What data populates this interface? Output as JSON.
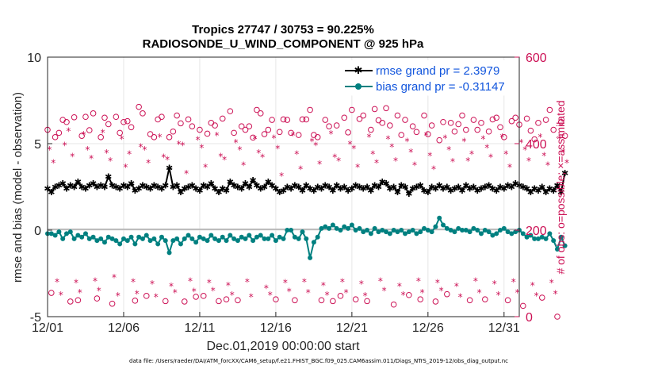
{
  "chart_data": {
    "type": "line",
    "title": "Tropics 27747 / 30753 = 90.225%",
    "subtitle": "RADIOSONDE_U_WIND_COMPONENT @ 925 hPa",
    "xlabel": "Dec.01,2019 00:00:00 start",
    "ylabel": "rmse and bias (model - observation)",
    "ylabel_right": "# of obs: o=possible; ×=assimilated",
    "x_range": [
      0,
      31
    ],
    "ylim": [
      -5,
      10
    ],
    "ylim_right": [
      0,
      600
    ],
    "x_ticks": [
      {
        "value": 0,
        "label": "12/01"
      },
      {
        "value": 5,
        "label": "12/06"
      },
      {
        "value": 10,
        "label": "12/11"
      },
      {
        "value": 15,
        "label": "12/16"
      },
      {
        "value": 20,
        "label": "12/21"
      },
      {
        "value": 25,
        "label": "12/26"
      },
      {
        "value": 30,
        "label": "12/31"
      }
    ],
    "y_ticks": [
      -5,
      0,
      5,
      10
    ],
    "y_ticks_right": [
      0,
      200,
      400,
      600
    ],
    "legend_position": "top-right",
    "series": [
      {
        "name": "rmse grand pr = 2.3979",
        "axis": "left",
        "color": "#000000",
        "marker": "star",
        "x_start": 0,
        "x_step": 0.25,
        "values": [
          2.4,
          2.2,
          2.5,
          2.6,
          2.7,
          2.4,
          2.6,
          2.5,
          2.8,
          2.5,
          2.4,
          2.6,
          2.7,
          2.5,
          2.6,
          2.5,
          3.1,
          2.6,
          2.5,
          2.4,
          2.6,
          2.5,
          2.7,
          2.3,
          2.4,
          2.6,
          2.5,
          2.4,
          2.6,
          2.5,
          2.4,
          2.6,
          3.6,
          2.5,
          2.6,
          2.2,
          2.4,
          2.5,
          2.6,
          2.4,
          2.3,
          2.6,
          2.5,
          2.7,
          2.4,
          2.2,
          2.4,
          2.3,
          2.8,
          2.6,
          2.5,
          2.4,
          2.7,
          2.5,
          2.9,
          2.6,
          2.4,
          2.5,
          2.8,
          2.6,
          2.4,
          2.2,
          2.3,
          2.5,
          2.4,
          2.6,
          2.5,
          2.3,
          2.6,
          2.4,
          2.3,
          2.5,
          2.4,
          2.6,
          2.5,
          2.3,
          2.6,
          2.4,
          2.5,
          2.3,
          2.4,
          2.6,
          2.5,
          2.4,
          2.5,
          2.3,
          2.6,
          2.5,
          2.8,
          2.7,
          2.4,
          2.5,
          2.2,
          2.6,
          2.5,
          2.1,
          2.4,
          2.5,
          2.6,
          2.3,
          2.2,
          2.5,
          2.4,
          2.6,
          2.4,
          2.5,
          2.3,
          2.4,
          2.5,
          2.3,
          2.6,
          2.4,
          2.5,
          2.3,
          2.4,
          2.5,
          2.6,
          2.4,
          2.3,
          2.5,
          2.4,
          2.6,
          2.5,
          2.7,
          2.6,
          2.5,
          2.4,
          2.2,
          2.4,
          2.3,
          2.5,
          2.2,
          2.4,
          2.3,
          2.6,
          2.2,
          3.3
        ]
      },
      {
        "name": "bias grand pr = -0.31147",
        "axis": "left",
        "color": "#008080",
        "marker": "circle",
        "x_start": 0,
        "x_step": 0.25,
        "values": [
          -0.2,
          -0.2,
          -0.3,
          -0.1,
          -0.5,
          -0.2,
          -0.1,
          -0.5,
          -0.3,
          -0.4,
          -0.2,
          -0.5,
          -0.4,
          -0.6,
          -0.5,
          -0.7,
          -0.4,
          -0.5,
          -0.6,
          -0.8,
          -0.5,
          -0.6,
          -0.4,
          -0.8,
          -0.4,
          -0.5,
          -0.3,
          -0.6,
          -0.5,
          -0.8,
          -0.4,
          -0.6,
          -1.3,
          -0.6,
          -0.5,
          -0.8,
          -0.5,
          -0.3,
          -0.5,
          -0.7,
          -0.4,
          -0.5,
          -0.6,
          -0.3,
          -0.5,
          -0.6,
          -0.4,
          -0.6,
          -0.3,
          -0.5,
          -0.6,
          -0.4,
          -0.5,
          -0.3,
          -0.6,
          -0.4,
          -0.3,
          -0.5,
          -0.5,
          -0.3,
          -0.6,
          -0.4,
          -0.5,
          0.0,
          0.0,
          -0.4,
          -0.5,
          -0.1,
          -0.5,
          -1.6,
          -0.7,
          -0.4,
          0.1,
          0.2,
          0.1,
          0.3,
          0.1,
          0.0,
          0.2,
          0.1,
          0.3,
          0.0,
          0.1,
          -0.1,
          0.0,
          -0.2,
          0.1,
          -0.1,
          0.0,
          -0.1,
          -0.2,
          0.0,
          -0.1,
          0.0,
          -0.2,
          -0.1,
          0.0,
          -0.2,
          -0.1,
          0.1,
          0.0,
          -0.1,
          0.2,
          0.7,
          0.3,
          0.1,
          0.0,
          -0.1,
          0.1,
          0.0,
          0.0,
          -0.1,
          0.1,
          0.0,
          -0.2,
          0.0,
          -0.1,
          -0.3,
          -0.2,
          0.0,
          0.1,
          -0.1,
          -0.2,
          -0.1,
          0.0,
          -0.2,
          -0.4,
          -0.3,
          -0.5,
          -0.5,
          -0.4,
          -0.5,
          -0.2,
          -0.6,
          -1.1,
          -0.4,
          -0.9
        ]
      },
      {
        "name": "possible",
        "axis": "right",
        "color": "#cc1155",
        "marker": "circle-open",
        "x_start": 0,
        "x_step": 0.25,
        "values": [
          432,
          55,
          415,
          425,
          455,
          450,
          35,
          461,
          38,
          418,
          462,
          431,
          470,
          42,
          415,
          460,
          445,
          30,
          462,
          425,
          450,
          452,
          438,
          37,
          485,
          470,
          48,
          422,
          415,
          456,
          462,
          36,
          415,
          428,
          465,
          447,
          35,
          456,
          440,
          46,
          432,
          48,
          423,
          448,
          442,
          36,
          458,
          40,
          475,
          425,
          38,
          440,
          432,
          440,
          414,
          478,
          470,
          422,
          432,
          455,
          40,
          427,
          456,
          455,
          425,
          38,
          420,
          456,
          456,
          478,
          420,
          415,
          38,
          455,
          440,
          36,
          442,
          48,
          460,
          426,
          478,
          40,
          457,
          465,
          36,
          432,
          480,
          454,
          448,
          482,
          442,
          28,
          465,
          420,
          455,
          50,
          440,
          427,
          40,
          465,
          422,
          442,
          35,
          408,
          450,
          52,
          448,
          428,
          445,
          465,
          432,
          38,
          455,
          432,
          448,
          40,
          428,
          456,
          460,
          438,
          415,
          38,
          452,
          460,
          444,
          25,
          458,
          430,
          410,
          448,
          44,
          455,
          478,
          432,
          0,
          450,
          418
        ]
      },
      {
        "name": "assimilated",
        "axis": "right",
        "color": "#cc1155",
        "marker": "star",
        "x_start": 0.125,
        "x_step": 0.25,
        "values": [
          385,
          355,
          80,
          50,
          395,
          428,
          370,
          78,
          55,
          420,
          385,
          365,
          82,
          60,
          425,
          378,
          360,
          90,
          48,
          410,
          345,
          375,
          80,
          52,
          392,
          385,
          355,
          75,
          45,
          415,
          368,
          362,
          70,
          55,
          398,
          395,
          330,
          82,
          58,
          408,
          390,
          345,
          78,
          60,
          418,
          370,
          362,
          72,
          50,
          402,
          385,
          350,
          80,
          45,
          410,
          378,
          368,
          65,
          50,
          412,
          388,
          325,
          78,
          58,
          418,
          375,
          340,
          80,
          55,
          405,
          395,
          352,
          72,
          50,
          422,
          368,
          360,
          80,
          55,
          398,
          388,
          345,
          75,
          48,
          415,
          375,
          355,
          82,
          60,
          410,
          392,
          360,
          70,
          50,
          405,
          380,
          350,
          82,
          55,
          418,
          372,
          340,
          78,
          60,
          412,
          385,
          358,
          70,
          45,
          405,
          360,
          375,
          82,
          55,
          410,
          390,
          368,
          75,
          50,
          415,
          375,
          345,
          80,
          55,
          402,
          385,
          360,
          72,
          48,
          415,
          372,
          350,
          78,
          52,
          410,
          380,
          355
        ]
      }
    ]
  },
  "footer": "data file: /Users/raeder/DAI/ATM_forcXX/CAM6_setup/f.e21.FHIST_BGC.f09_025.CAM6assim.011/Diags_NTrS_2019-12/obs_diag_output.nc"
}
